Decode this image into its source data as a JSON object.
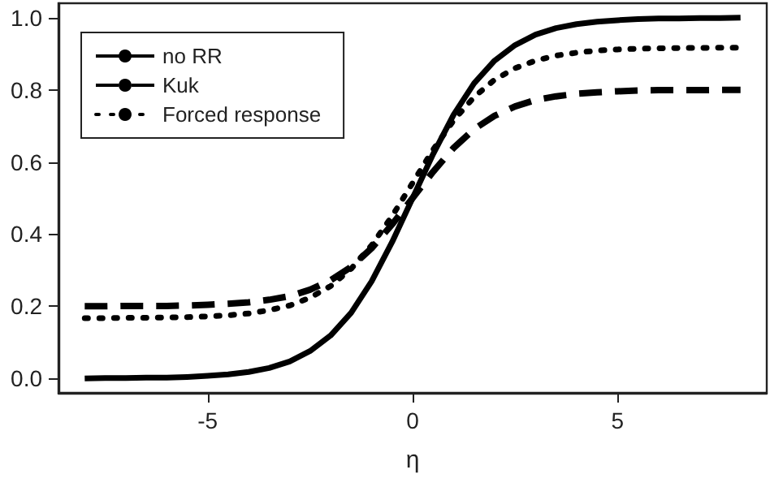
{
  "chart_data": {
    "type": "line",
    "xlabel": "η",
    "x": [
      -8,
      -7.5,
      -7,
      -6.5,
      -6,
      -5.5,
      -5,
      -4.5,
      -4,
      -3.5,
      -3,
      -2.5,
      -2,
      -1.5,
      -1,
      -0.5,
      0,
      0.5,
      1,
      1.5,
      2,
      2.5,
      3,
      3.5,
      4,
      4.5,
      5,
      5.5,
      6,
      6.5,
      7,
      7.5,
      8
    ],
    "series": [
      {
        "name": "no RR",
        "color": "#000000",
        "line_style": "solid",
        "values": [
          0,
          0.001,
          0.001,
          0.002,
          0.002,
          0.004,
          0.007,
          0.011,
          0.018,
          0.029,
          0.047,
          0.076,
          0.119,
          0.182,
          0.269,
          0.378,
          0.5,
          0.622,
          0.731,
          0.818,
          0.881,
          0.924,
          0.953,
          0.971,
          0.982,
          0.989,
          0.993,
          0.996,
          0.998,
          0.998,
          0.999,
          0.999,
          1.0
        ]
      },
      {
        "name": "Kuk",
        "color": "#000000",
        "line_style": "dashed",
        "values": [
          0.2,
          0.2,
          0.201,
          0.201,
          0.201,
          0.202,
          0.204,
          0.207,
          0.211,
          0.218,
          0.228,
          0.246,
          0.272,
          0.309,
          0.361,
          0.427,
          0.5,
          0.573,
          0.639,
          0.691,
          0.728,
          0.754,
          0.772,
          0.782,
          0.789,
          0.793,
          0.796,
          0.798,
          0.799,
          0.799,
          0.799,
          0.8,
          0.8
        ]
      },
      {
        "name": "Forced response",
        "color": "#000000",
        "line_style": "dotted",
        "values": [
          0.167,
          0.167,
          0.168,
          0.168,
          0.169,
          0.17,
          0.172,
          0.175,
          0.18,
          0.189,
          0.202,
          0.224,
          0.256,
          0.304,
          0.369,
          0.45,
          0.542,
          0.634,
          0.715,
          0.78,
          0.828,
          0.86,
          0.881,
          0.895,
          0.903,
          0.909,
          0.912,
          0.914,
          0.915,
          0.916,
          0.916,
          0.917,
          0.917
        ]
      }
    ],
    "xlim": [
      -8.64,
      8.64
    ],
    "ylim": [
      -0.04,
      1.04
    ],
    "xticks": [
      -5,
      0,
      5
    ],
    "yticks": [
      {
        "value": 0,
        "label": "0.0"
      },
      {
        "value": 0.2,
        "label": "0.2"
      },
      {
        "value": 0.4,
        "label": "0.4"
      },
      {
        "value": 0.6,
        "label": "0.6"
      },
      {
        "value": 0.8,
        "label": "0.8"
      },
      {
        "value": 1,
        "label": "1.0"
      }
    ],
    "grid": false,
    "legend": "top left",
    "marker": "none"
  }
}
